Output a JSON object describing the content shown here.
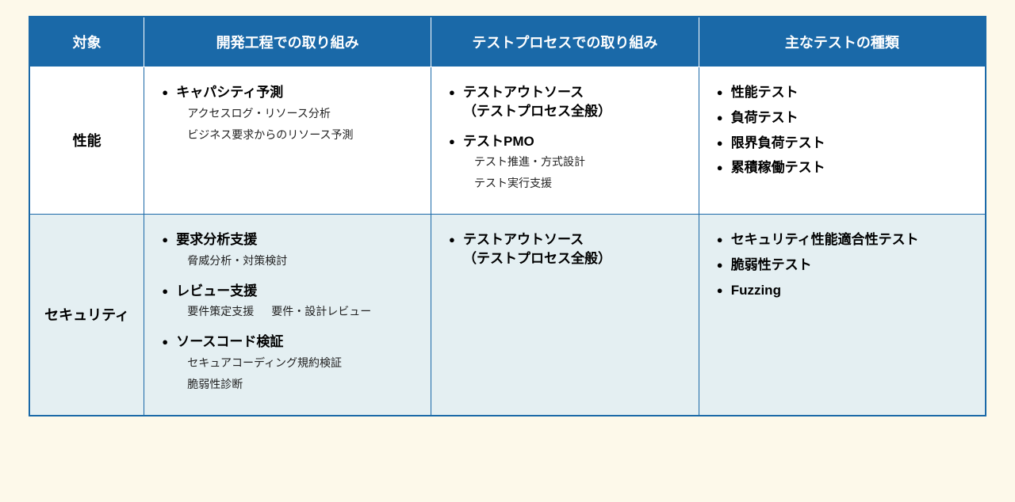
{
  "type": "table",
  "styling": {
    "page_bg": "#fdf9ea",
    "header_bg": "#1a69a8",
    "header_fg": "#ffffff",
    "border_color": "#1a69a8",
    "alt_row_bg": "#e4eff2",
    "header_fontsize_pt": 14,
    "body_bullet_fontsize_pt": 13,
    "body_sub_fontsize_pt": 11,
    "row_label_fontsize_pt": 14,
    "column_widths_pct": [
      12,
      30,
      28,
      30
    ]
  },
  "columns": [
    {
      "key": "target",
      "label": "対象"
    },
    {
      "key": "dev",
      "label": "開発工程での取り組み"
    },
    {
      "key": "test",
      "label": "テストプロセスでの取り組み"
    },
    {
      "key": "types",
      "label": "主なテストの種類"
    }
  ],
  "rows": [
    {
      "label": "性能",
      "dev": [
        {
          "main": "キャパシティ予測",
          "subs": [
            "アクセスログ・リソース分析",
            "ビジネス要求からのリソース予測"
          ]
        }
      ],
      "test": [
        {
          "main": "テストアウトソース",
          "subs": [
            "（テストプロセス全般）"
          ],
          "subs_inline_with_main": true
        },
        {
          "main": "テストPMO",
          "subs": [
            "テスト推進・方式設計",
            "テスト実行支援"
          ]
        }
      ],
      "types": [
        {
          "main": "性能テスト"
        },
        {
          "main": "負荷テスト"
        },
        {
          "main": "限界負荷テスト"
        },
        {
          "main": "累積稼働テスト"
        }
      ]
    },
    {
      "label": "セキュリティ",
      "alt": true,
      "dev": [
        {
          "main": "要求分析支援",
          "subs": [
            "脅威分析・対策検討"
          ]
        },
        {
          "main": "レビュー支援",
          "subs_row": [
            "要件策定支援",
            "要件・設計レビュー"
          ]
        },
        {
          "main": "ソースコード検証",
          "subs": [
            "セキュアコーディング規約検証",
            "脆弱性診断"
          ]
        }
      ],
      "test": [
        {
          "main": "テストアウトソース",
          "subs": [
            "（テストプロセス全般）"
          ],
          "subs_inline_with_main": true
        }
      ],
      "types": [
        {
          "main": "セキュリティ性能適合性テスト"
        },
        {
          "main": "脆弱性テスト"
        },
        {
          "main": "Fuzzing"
        }
      ]
    }
  ]
}
